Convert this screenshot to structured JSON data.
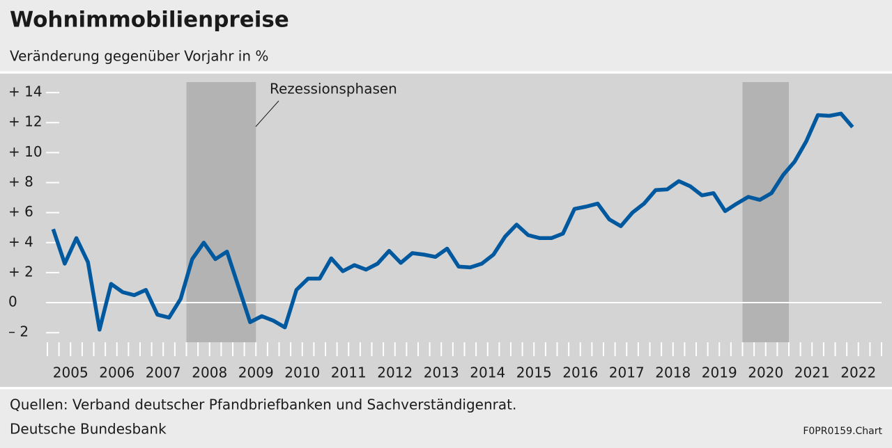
{
  "chart_data": {
    "type": "line",
    "title": "Wohnimmobilienpreise",
    "subtitle": "Veränderung gegenüber Vorjahr in %",
    "annotation": "Rezessionsphasen",
    "recessions": [
      [
        2008,
        2009.5
      ],
      [
        2020,
        2021
      ]
    ],
    "recession_color": "#b3b3b3",
    "x": [
      2005.125,
      2005.375,
      2005.625,
      2005.875,
      2006.125,
      2006.375,
      2006.625,
      2006.875,
      2007.125,
      2007.375,
      2007.625,
      2007.875,
      2008.125,
      2008.375,
      2008.625,
      2008.875,
      2009.125,
      2009.375,
      2009.625,
      2009.875,
      2010.125,
      2010.375,
      2010.625,
      2010.875,
      2011.125,
      2011.375,
      2011.625,
      2011.875,
      2012.125,
      2012.375,
      2012.625,
      2012.875,
      2013.125,
      2013.375,
      2013.625,
      2013.875,
      2014.125,
      2014.375,
      2014.625,
      2014.875,
      2015.125,
      2015.375,
      2015.625,
      2015.875,
      2016.125,
      2016.375,
      2016.625,
      2016.875,
      2017.125,
      2017.375,
      2017.625,
      2017.875,
      2018.125,
      2018.375,
      2018.625,
      2018.875,
      2019.125,
      2019.375,
      2019.625,
      2019.875,
      2020.125,
      2020.375,
      2020.625,
      2020.875,
      2021.125,
      2021.375,
      2021.625,
      2021.875,
      2022.125,
      2022.375
    ],
    "series": [
      {
        "color": "#00589e",
        "values": [
          4.9,
          2.6,
          4.3,
          2.7,
          -1.8,
          1.25,
          0.7,
          0.5,
          0.85,
          -0.8,
          -1.0,
          0.25,
          2.9,
          4.0,
          2.9,
          3.4,
          1.05,
          -1.3,
          -0.9,
          -1.2,
          -1.65,
          0.85,
          1.6,
          1.6,
          2.95,
          2.1,
          2.5,
          2.2,
          2.6,
          3.45,
          2.65,
          3.3,
          3.2,
          3.05,
          3.6,
          2.4,
          2.35,
          2.6,
          3.2,
          4.4,
          5.2,
          4.5,
          4.3,
          4.3,
          4.6,
          6.25,
          6.4,
          6.6,
          5.55,
          5.1,
          6.0,
          6.6,
          7.5,
          7.55,
          8.1,
          7.75,
          7.15,
          7.3,
          6.1,
          6.6,
          7.05,
          6.85,
          7.3,
          8.5,
          9.4,
          10.75,
          12.5,
          12.45,
          12.6,
          11.7
        ]
      }
    ],
    "xlim": [
      2005,
      2023
    ],
    "xticks": [
      {
        "value": 2005.5,
        "label": "2005"
      },
      {
        "value": 2006.5,
        "label": "2006"
      },
      {
        "value": 2007.5,
        "label": "2007"
      },
      {
        "value": 2008.5,
        "label": "2008"
      },
      {
        "value": 2009.5,
        "label": "2009"
      },
      {
        "value": 2010.5,
        "label": "2010"
      },
      {
        "value": 2011.5,
        "label": "2011"
      },
      {
        "value": 2012.5,
        "label": "2012"
      },
      {
        "value": 2013.5,
        "label": "2013"
      },
      {
        "value": 2014.5,
        "label": "2014"
      },
      {
        "value": 2015.5,
        "label": "2015"
      },
      {
        "value": 2016.5,
        "label": "2016"
      },
      {
        "value": 2017.5,
        "label": "2017"
      },
      {
        "value": 2018.5,
        "label": "2018"
      },
      {
        "value": 2019.5,
        "label": "2019"
      },
      {
        "value": 2020.5,
        "label": "2020"
      },
      {
        "value": 2021.5,
        "label": "2021"
      },
      {
        "value": 2022.5,
        "label": "2022"
      }
    ],
    "ylim": [
      -2.64,
      14.7
    ],
    "yticks": [
      {
        "value": 14,
        "label": "+ 14"
      },
      {
        "value": 12,
        "label": "+ 12"
      },
      {
        "value": 10,
        "label": "+ 10"
      },
      {
        "value": 8,
        "label": "+ 8"
      },
      {
        "value": 6,
        "label": "+ 6"
      },
      {
        "value": 4,
        "label": "+ 4"
      },
      {
        "value": 2,
        "label": "+ 2"
      },
      0,
      {
        "value": -2,
        "label": "– 2"
      }
    ],
    "zero_line": true,
    "sources": [
      "Quellen: Verband deutscher Pfandbriefbanken und Sachverständigenrat.",
      "Deutsche Bundesbank"
    ],
    "chart_id": "F0PR0159.Chart"
  }
}
